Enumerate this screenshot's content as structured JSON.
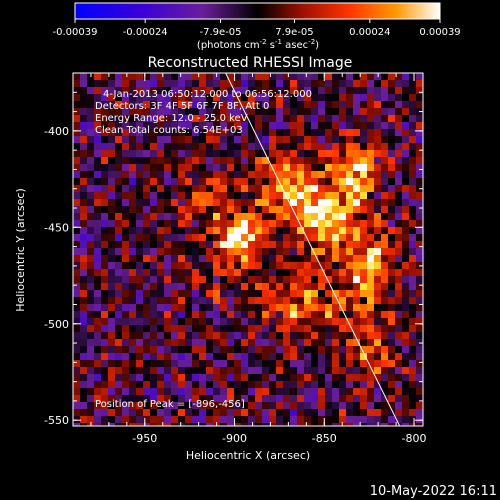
{
  "chart_data": {
    "type": "heatmap",
    "title": "Reconstructed RHESSI Image",
    "colorbar": {
      "tick_labels": [
        "-0.00039",
        "-0.00024",
        "-7.9e-05",
        "7.9e-05",
        "0.00024",
        "0.00039"
      ],
      "ticks": [
        -0.00039,
        -0.00024,
        -7.9e-05,
        7.9e-05,
        0.00024,
        0.00039
      ],
      "range": [
        -0.00039,
        0.00039
      ],
      "unit_main": "(photons cm",
      "unit_exp1": "-2",
      "unit_mid": " s",
      "unit_exp2": "-1",
      "unit_end": " asec",
      "unit_exp3": "-2",
      "unit_close": ")"
    },
    "xlabel": "Heliocentric X (arcsec)",
    "ylabel": "Heliocentric Y (arcsec)",
    "xlim": [
      -990,
      -795
    ],
    "ylim": [
      -553,
      -370
    ],
    "xticks": [
      -950,
      -900,
      -850,
      -800
    ],
    "xtick_labels": [
      "-950",
      "-900",
      "-850",
      "-800"
    ],
    "yticks": [
      -550,
      -500,
      -450,
      -400
    ],
    "ytick_labels": [
      "-550",
      "-500",
      "-450",
      "-400"
    ],
    "annotations": {
      "time": "4-Jan-2013 06:50:12.000 to 06:56:12.000",
      "detectors": "Detectors: 3F 4F 5F 6F 7F 8F, Att 0",
      "energy": "Energy Range: 12.0 - 25.0 keV",
      "clean": "Clean    Total counts: 6.54E+03",
      "peak": "Position of Peak = [-896,-456]"
    },
    "peak": {
      "x": -896,
      "y": -456
    },
    "limb_line": {
      "x": [
        -905,
        -808
      ],
      "y": [
        -370,
        -553
      ]
    },
    "sources": [
      {
        "x": -897,
        "y": -456,
        "amp": 0.00039,
        "sx": 9,
        "sy": 8
      },
      {
        "x": -872,
        "y": -428,
        "amp": 0.0003,
        "sx": 12,
        "sy": 11
      },
      {
        "x": -850,
        "y": -445,
        "amp": 0.00036,
        "sx": 12,
        "sy": 14
      },
      {
        "x": -832,
        "y": -420,
        "amp": 0.0003,
        "sx": 9,
        "sy": 12
      },
      {
        "x": -825,
        "y": -470,
        "amp": 0.0003,
        "sx": 9,
        "sy": 16
      },
      {
        "x": -862,
        "y": -490,
        "amp": 0.00022,
        "sx": 18,
        "sy": 12
      },
      {
        "x": -825,
        "y": -515,
        "amp": 0.0002,
        "sx": 10,
        "sy": 10
      },
      {
        "x": -915,
        "y": -435,
        "amp": 0.00016,
        "sx": 14,
        "sy": 12
      },
      {
        "x": -905,
        "y": -475,
        "amp": 0.00012,
        "sx": 12,
        "sy": 10
      }
    ]
  },
  "footer": {
    "date": "10-May-2022 16:11"
  }
}
